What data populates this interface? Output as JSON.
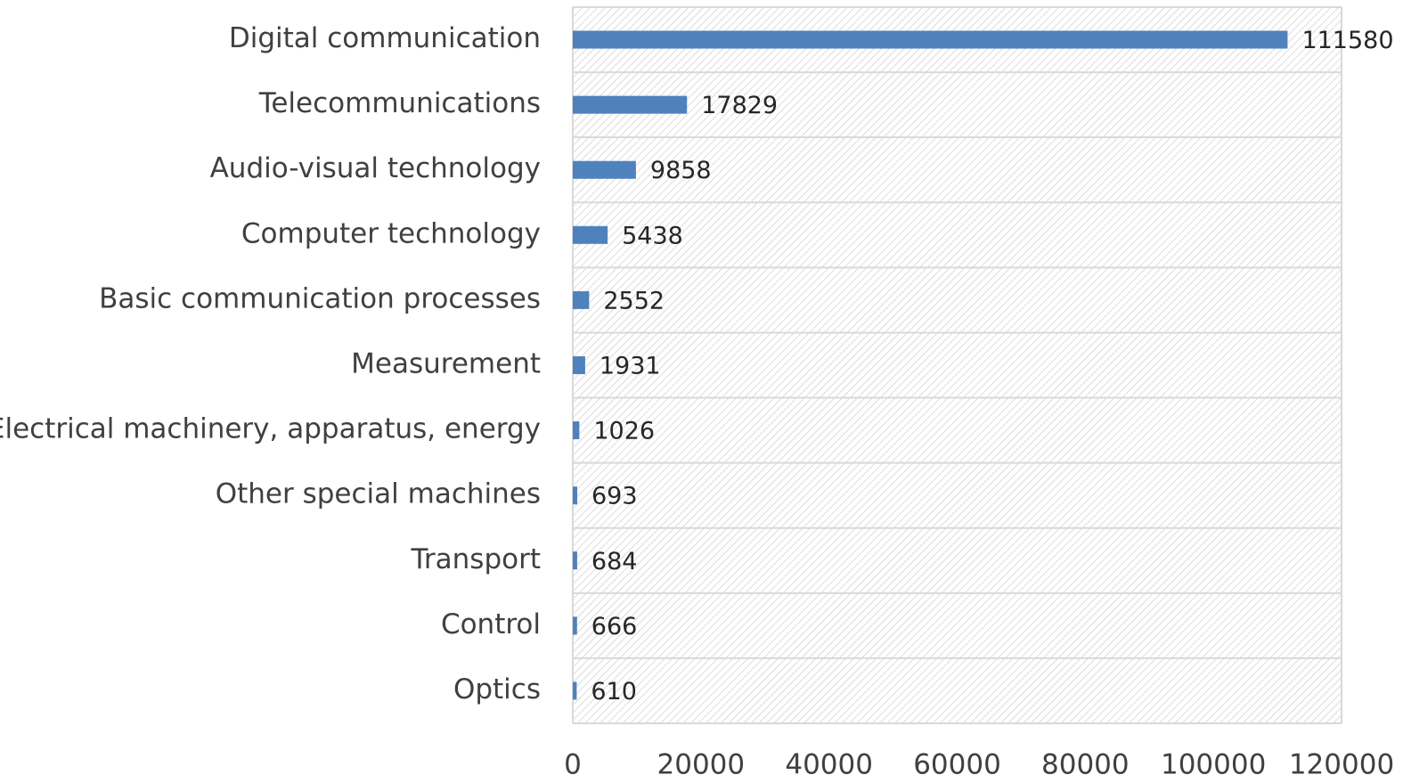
{
  "chart_data": {
    "type": "bar",
    "orientation": "horizontal",
    "categories": [
      "Digital communication",
      "Telecommunications",
      "Audio-visual technology",
      "Computer technology",
      "Basic communication processes",
      "Measurement",
      "Electrical machinery, apparatus, energy",
      "Other special machines",
      "Transport",
      "Control",
      "Optics"
    ],
    "values": [
      111580,
      17829,
      9858,
      5438,
      2552,
      1931,
      1026,
      693,
      684,
      666,
      610
    ],
    "color": "#4f81bd",
    "xlim": [
      0,
      120000
    ],
    "xticks": [
      0,
      20000,
      40000,
      60000,
      80000,
      100000,
      120000
    ],
    "grid": false
  }
}
